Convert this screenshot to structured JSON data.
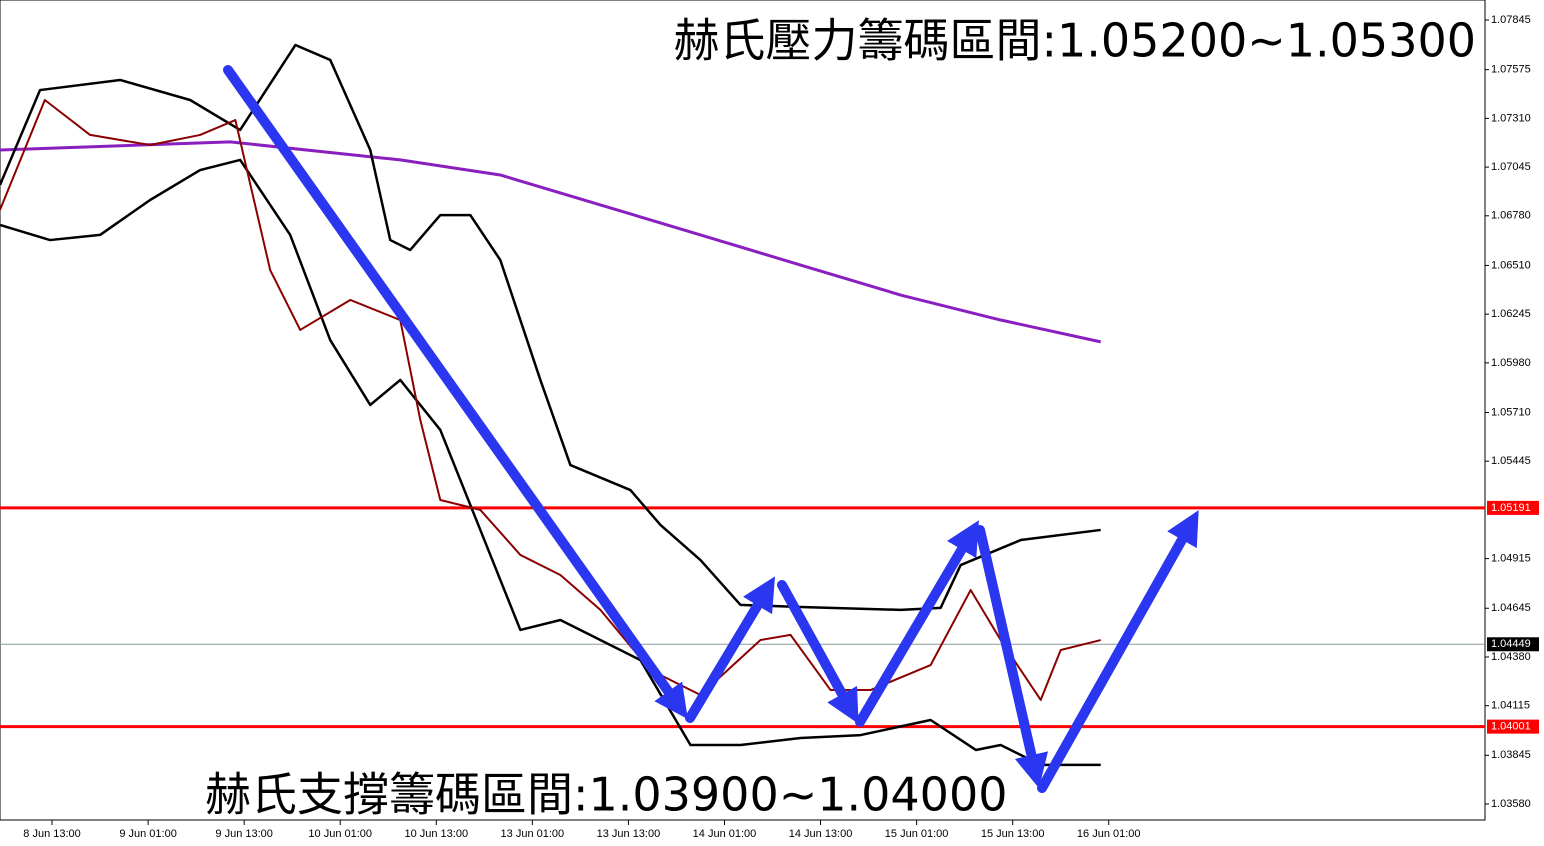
{
  "chart_data": {
    "type": "line",
    "annotations": [
      "赫氏壓力籌碼區間:1.05200~1.05300",
      "赫氏支撐籌碼區間:1.03900~1.04000"
    ],
    "xlim": [
      0,
      185.5
    ],
    "xticks": [
      {
        "value": 6.5,
        "label": "8 Jun 13:00"
      },
      {
        "value": 18.5,
        "label": "9 Jun 01:00"
      },
      {
        "value": 30.5,
        "label": "9 Jun 13:00"
      },
      {
        "value": 42.5,
        "label": "10 Jun 01:00"
      },
      {
        "value": 54.5,
        "label": "10 Jun 13:00"
      },
      {
        "value": 66.5,
        "label": "13 Jun 01:00"
      },
      {
        "value": 78.5,
        "label": "13 Jun 13:00"
      },
      {
        "value": 90.5,
        "label": "14 Jun 01:00"
      },
      {
        "value": 102.5,
        "label": "14 Jun 13:00"
      },
      {
        "value": 114.5,
        "label": "15 Jun 01:00"
      },
      {
        "value": 126.5,
        "label": "15 Jun 13:00"
      },
      {
        "value": 138.5,
        "label": "16 Jun 01:00"
      }
    ],
    "ylim": [
      1.03493,
      1.07954
    ],
    "yticks": [
      {
        "value": 1.07845,
        "label": "1.07845"
      },
      {
        "value": 1.07575,
        "label": "1.07575"
      },
      {
        "value": 1.0731,
        "label": "1.07310"
      },
      {
        "value": 1.07045,
        "label": "1.07045"
      },
      {
        "value": 1.0678,
        "label": "1.06780"
      },
      {
        "value": 1.0651,
        "label": "1.06510"
      },
      {
        "value": 1.06245,
        "label": "1.06245"
      },
      {
        "value": 1.0598,
        "label": "1.05980"
      },
      {
        "value": 1.0571,
        "label": "1.05710"
      },
      {
        "value": 1.05445,
        "label": "1.05445"
      },
      {
        "value": 1.04915,
        "label": "1.04915"
      },
      {
        "value": 1.04645,
        "label": "1.04645"
      },
      {
        "value": 1.0438,
        "label": "1.04380"
      },
      {
        "value": 1.04115,
        "label": "1.04115"
      },
      {
        "value": 1.03845,
        "label": "1.03845"
      },
      {
        "value": 1.0358,
        "label": "1.03580"
      }
    ],
    "levels": [
      {
        "value": 1.05191,
        "color": "#ff0000"
      },
      {
        "value": 1.04001,
        "color": "#ff0000"
      },
      {
        "value": 1.04449,
        "color": "#000000"
      }
    ],
    "series": [
      {
        "color": "#8a1fc0",
        "width": 3,
        "x": [
          0,
          28.75,
          50,
          62.5,
          75,
          87.5,
          100,
          112.5,
          125,
          137.5
        ],
        "values": [
          1.07138,
          1.07182,
          1.07084,
          1.07002,
          1.06839,
          1.06676,
          1.06512,
          1.06349,
          1.06213,
          1.06094
        ]
      },
      {
        "color": "#000000",
        "width": 2.5,
        "x": [
          0,
          5,
          15,
          23.75,
          30,
          36.9,
          41.25,
          46.25,
          48.75,
          51.25,
          55,
          58.75,
          62.5,
          67.5,
          71.25,
          78.75,
          82.5,
          87.5,
          92.5,
          100,
          112.5,
          117.5,
          120,
          127.5,
          137.5
        ],
        "values": [
          1.06948,
          1.07464,
          1.07519,
          1.0741,
          1.07247,
          1.07709,
          1.07628,
          1.07138,
          1.06648,
          1.06594,
          1.06784,
          1.06784,
          1.06539,
          1.05887,
          1.05424,
          1.05288,
          1.05098,
          1.04907,
          1.04663,
          1.04652,
          1.04636,
          1.04647,
          1.0488,
          1.05016,
          1.05071
        ]
      },
      {
        "color": "#000000",
        "width": 2.5,
        "x": [
          0,
          6.25,
          12.5,
          18.75,
          25,
          30,
          36.25,
          41.25,
          46.25,
          50,
          55,
          60,
          65,
          70,
          80,
          86.25,
          92.5,
          100,
          107.5,
          116.25,
          121.9,
          125,
          130,
          137.5
        ],
        "values": [
          1.0673,
          1.06648,
          1.06676,
          1.06866,
          1.07029,
          1.07084,
          1.06676,
          1.06104,
          1.05751,
          1.05887,
          1.05615,
          1.05071,
          1.04527,
          1.04581,
          1.04363,
          1.03901,
          1.03901,
          1.03939,
          1.03955,
          1.04037,
          1.03874,
          1.03901,
          1.03793,
          1.03793
        ]
      },
      {
        "color": "#8b0000",
        "width": 2,
        "x": [
          0,
          5.6,
          11.25,
          18.75,
          25,
          29.4,
          33.75,
          37.5,
          43.75,
          50,
          52.5,
          55,
          60,
          65,
          70,
          75,
          81.25,
          87.5,
          95,
          98.75,
          103.75,
          108.75,
          116.25,
          121.25,
          125,
          130,
          132.5,
          137.5
        ],
        "values": [
          1.06812,
          1.0741,
          1.0722,
          1.07165,
          1.0722,
          1.07301,
          1.06485,
          1.06159,
          1.06322,
          1.06213,
          1.0567,
          1.05234,
          1.0518,
          1.04935,
          1.04826,
          1.04636,
          1.04309,
          1.04173,
          1.04472,
          1.045,
          1.042,
          1.042,
          1.04336,
          1.04744,
          1.04472,
          1.04146,
          1.04418,
          1.04472
        ]
      }
    ]
  }
}
